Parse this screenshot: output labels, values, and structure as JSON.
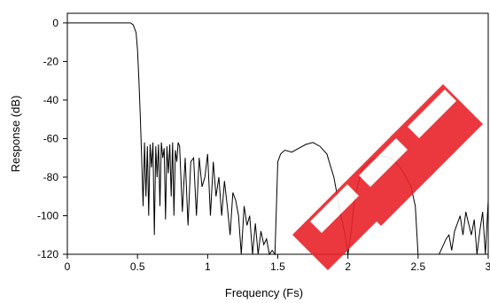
{
  "chart_data": {
    "type": "line",
    "title": "",
    "xlabel": "Frequency (Fs)",
    "ylabel": "Response (dB)",
    "xlim": [
      0,
      3
    ],
    "ylim": [
      -120,
      5
    ],
    "x_ticks": [
      "0",
      "0.5",
      "1",
      "1.5",
      "2",
      "2.5",
      "3"
    ],
    "y_ticks": [
      "0",
      "-20",
      "-40",
      "-60",
      "-80",
      "-100",
      "-120"
    ],
    "grid": false,
    "legend": "none",
    "series": [
      {
        "color": "#000000",
        "x": [
          0,
          0.45,
          0.47,
          0.49,
          0.5,
          0.51,
          0.52,
          0.53,
          0.54,
          0.55,
          0.56,
          0.57,
          0.58,
          0.59,
          0.6,
          0.61,
          0.62,
          0.63,
          0.64,
          0.65,
          0.66,
          0.67,
          0.68,
          0.69,
          0.7,
          0.71,
          0.72,
          0.73,
          0.74,
          0.75,
          0.76,
          0.77,
          0.78,
          0.79,
          0.8,
          0.82,
          0.84,
          0.86,
          0.88,
          0.9,
          0.92,
          0.94,
          0.96,
          0.98,
          1.0,
          1.02,
          1.04,
          1.06,
          1.08,
          1.1,
          1.12,
          1.14,
          1.16,
          1.18,
          1.2,
          1.22,
          1.24,
          1.26,
          1.28,
          1.3,
          1.32,
          1.34,
          1.36,
          1.38,
          1.4,
          1.42,
          1.44,
          1.46,
          1.48,
          1.5,
          1.52,
          1.55,
          1.6,
          1.65,
          1.7,
          1.75,
          1.8,
          1.85,
          1.9,
          1.95,
          1.98,
          2.0,
          2.02,
          2.05,
          2.1,
          2.15,
          2.2,
          2.25,
          2.3,
          2.35,
          2.4,
          2.45,
          2.48,
          2.5,
          2.52,
          2.55,
          2.6,
          2.65,
          2.7,
          2.72,
          2.74,
          2.76,
          2.78,
          2.8,
          2.82,
          2.84,
          2.86,
          2.88,
          2.9,
          2.92,
          2.94,
          2.96,
          2.98,
          3.0
        ],
        "values": [
          0,
          0,
          -1,
          -5,
          -14,
          -30,
          -48,
          -70,
          -95,
          -62,
          -90,
          -64,
          -100,
          -63,
          -75,
          -62,
          -110,
          -64,
          -80,
          -63,
          -95,
          -62,
          -70,
          -65,
          -102,
          -64,
          -78,
          -63,
          -90,
          -62,
          -100,
          -66,
          -72,
          -62,
          -64,
          -98,
          -70,
          -105,
          -72,
          -70,
          -100,
          -70,
          -85,
          -80,
          -68,
          -100,
          -72,
          -90,
          -80,
          -100,
          -82,
          -95,
          -110,
          -88,
          -92,
          -100,
          -120,
          -95,
          -105,
          -100,
          -120,
          -104,
          -120,
          -108,
          -115,
          -112,
          -120,
          -118,
          -120,
          -72,
          -68,
          -66,
          -67,
          -65,
          -63,
          -62,
          -64,
          -68,
          -80,
          -100,
          -110,
          -120,
          -110,
          -90,
          -76,
          -72,
          -70,
          -69,
          -70,
          -73,
          -78,
          -85,
          -95,
          -120,
          -120,
          -120,
          -120,
          -120,
          -112,
          -110,
          -118,
          -108,
          -104,
          -100,
          -110,
          -98,
          -104,
          -110,
          -102,
          -120,
          -108,
          -98,
          -120,
          -92
        ]
      }
    ]
  }
}
